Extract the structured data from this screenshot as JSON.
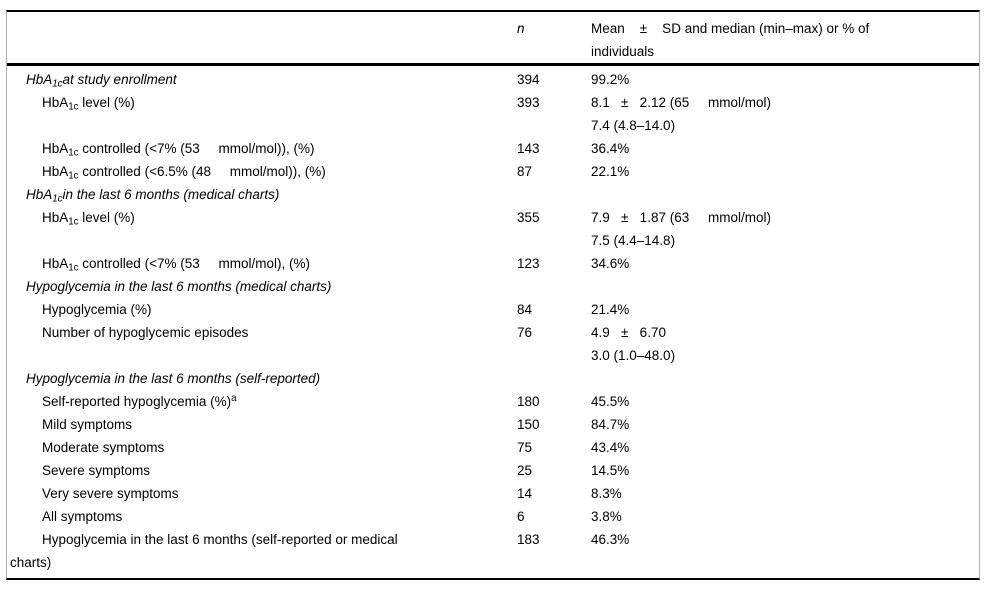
{
  "table": {
    "header": {
      "label": "",
      "n": "n",
      "value": "Mean    ±    SD and median (min–max) or % of\nindividuals"
    },
    "rows": [
      {
        "label": "HbA~1c~at study enrollment",
        "n": "394",
        "value": "99.2%"
      },
      {
        "label": "HbA~1c~ level (%)",
        "n": "393",
        "value": "8.1   ±   2.12 (65     mmol/mol)\n7.4 (4.8–14.0)"
      },
      {
        "label": "HbA~1c~ controlled (<7% (53     mmol/mol)), (%)",
        "n": "143",
        "value": "36.4%"
      },
      {
        "label": "HbA~1c~ controlled (<6.5% (48     mmol/mol)), (%)",
        "n": "87",
        "value": "22.1%"
      },
      {
        "label": "HbA~1c~in the last 6 months (medical charts)",
        "n": "",
        "value": ""
      },
      {
        "label": "HbA~1c~ level (%)",
        "n": "355",
        "value": "7.9   ±   1.87 (63     mmol/mol)\n7.5 (4.4–14.8)"
      },
      {
        "label": "HbA~1c~ controlled (<7% (53     mmol/mol), (%)",
        "n": "123",
        "value": "34.6%"
      },
      {
        "label": "Hypoglycemia in the last 6 months (medical charts)",
        "n": "",
        "value": ""
      },
      {
        "label": "Hypoglycemia (%)",
        "n": "84",
        "value": "21.4%"
      },
      {
        "label": "Number of hypoglycemic episodes",
        "n": "76",
        "value": "4.9   ±   6.70\n3.0 (1.0–48.0)"
      },
      {
        "label": "Hypoglycemia in the last 6 months (self-reported)",
        "n": "",
        "value": ""
      },
      {
        "label": "Self-reported hypoglycemia (%)^a^",
        "n": "180",
        "value": "45.5%"
      },
      {
        "label": "Mild symptoms",
        "n": "150",
        "value": "84.7%"
      },
      {
        "label": "Moderate symptoms",
        "n": "75",
        "value": "43.4%"
      },
      {
        "label": "Severe symptoms",
        "n": "25",
        "value": "14.5%"
      },
      {
        "label": "Very severe symptoms",
        "n": "14",
        "value": "8.3%"
      },
      {
        "label": "All symptoms",
        "n": "6",
        "value": "3.8%"
      },
      {
        "label": "Hypoglycemia in the last 6 months (self-reported or medical\ncharts)",
        "n": "183",
        "value": "46.3%"
      }
    ]
  }
}
